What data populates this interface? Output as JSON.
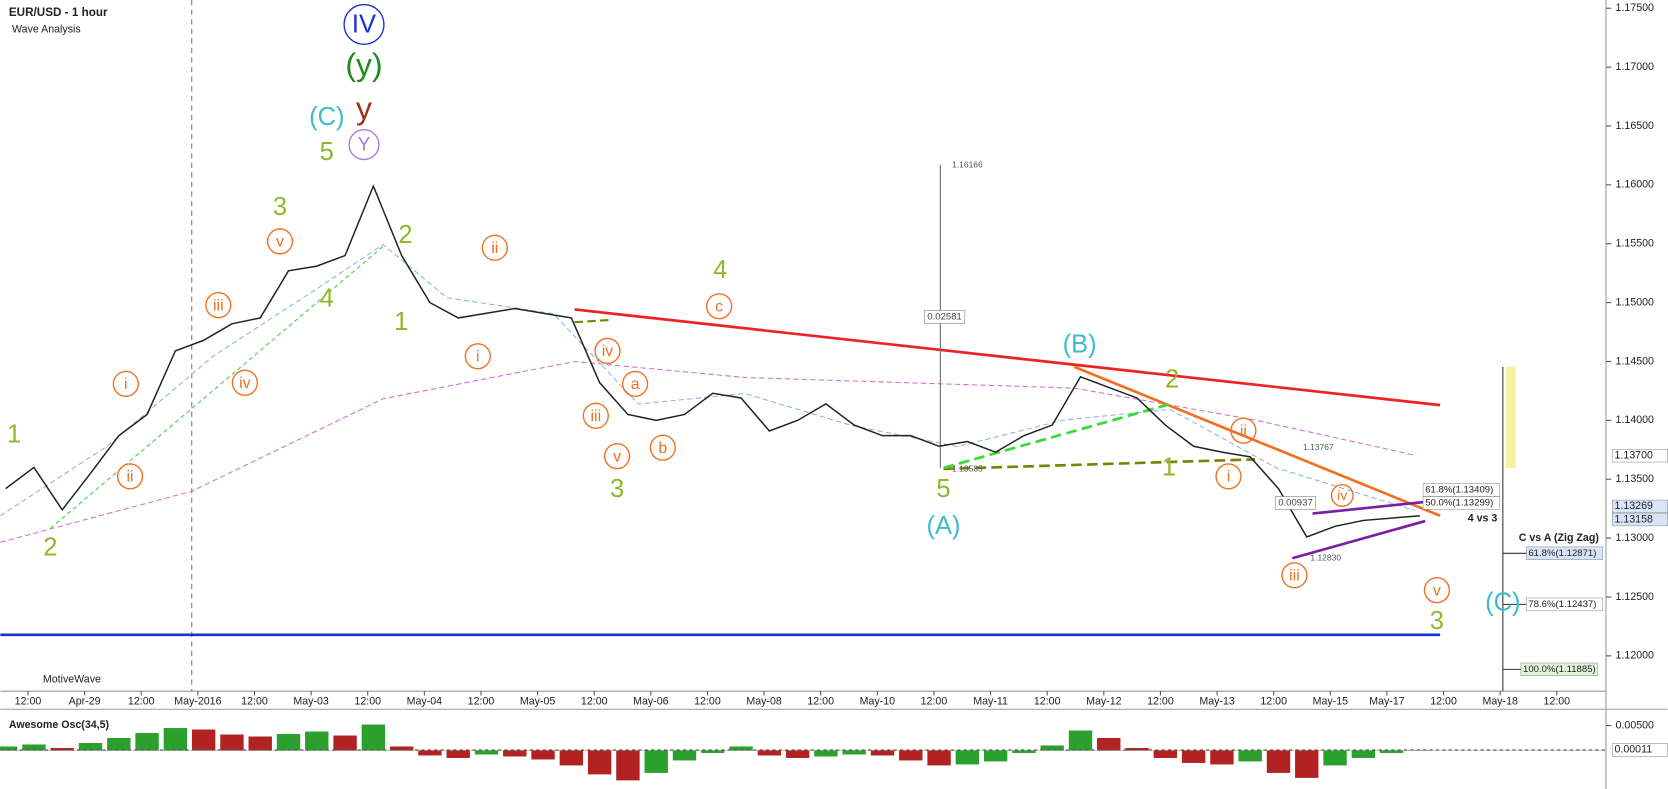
{
  "header": {
    "title": "EUR/USD - 1 hour",
    "subtitle": "Wave Analysis",
    "brand": "MotiveWave"
  },
  "chart_data": [
    {
      "type": "line",
      "name": "EUR/USD",
      "color": "#222222",
      "values": [
        1.1342,
        1.136,
        1.1324,
        1.1355,
        1.1387,
        1.1405,
        1.1459,
        1.1468,
        1.1482,
        1.1487,
        1.1527,
        1.1531,
        1.154,
        1.1599,
        1.154,
        1.15,
        1.1487,
        1.1491,
        1.1495,
        1.1491,
        1.1487,
        1.1432,
        1.1405,
        1.14,
        1.1405,
        1.1423,
        1.1419,
        1.1391,
        1.14,
        1.1414,
        1.1396,
        1.1387,
        1.1387,
        1.1378,
        1.1382,
        1.1373,
        1.1387,
        1.1396,
        1.1437,
        1.1428,
        1.1419,
        1.1396,
        1.1378,
        1.1373,
        1.1369,
        1.1342,
        1.1301,
        1.131,
        1.1315,
        1.1317,
        1.1319
      ],
      "ylim": [
        1.117,
        1.1757
      ],
      "yticks": [
        {
          "value": 1.12,
          "label": "1.12000"
        },
        {
          "value": 1.125,
          "label": "1.12500"
        },
        {
          "value": 1.13,
          "label": "1.13000"
        },
        {
          "value": 1.135,
          "label": "1.13500"
        },
        {
          "value": 1.14,
          "label": "1.14000"
        },
        {
          "value": 1.145,
          "label": "1.14500"
        },
        {
          "value": 1.15,
          "label": "1.15000"
        },
        {
          "value": 1.155,
          "label": "1.15500"
        },
        {
          "value": 1.16,
          "label": "1.16000"
        },
        {
          "value": 1.165,
          "label": "1.16500"
        },
        {
          "value": 1.17,
          "label": "1.17000"
        },
        {
          "value": 1.175,
          "label": "1.17500"
        }
      ],
      "x_tick_labels": [
        "12:00",
        "Apr-29",
        "12:00",
        "May-2016",
        "12:00",
        "May-03",
        "12:00",
        "May-04",
        "12:00",
        "May-05",
        "12:00",
        "May-06",
        "12:00",
        "May-08",
        "12:00",
        "May-10",
        "12:00",
        "May-11",
        "12:00",
        "May-12",
        "12:00",
        "May-13",
        "12:00",
        "May-15",
        "May-17",
        "12:00",
        "May-18",
        "12:00"
      ],
      "price_labels": [
        {
          "value": 1.137,
          "label": "1.13700"
        },
        {
          "value": 1.13269,
          "label": "1.13269"
        },
        {
          "value": 1.13158,
          "label": "1.13158"
        }
      ]
    },
    {
      "type": "bar",
      "title": "Awesome Osc(34,5)",
      "up_color": "#2ca02c",
      "down_color": "#b22222",
      "values": [
        0.0008,
        0.0012,
        0.0005,
        0.0015,
        0.0025,
        0.0035,
        0.0045,
        0.0042,
        0.0032,
        0.0028,
        0.0033,
        0.0038,
        0.003,
        0.0052,
        0.0008,
        -0.001,
        -0.0015,
        -0.0008,
        -0.0012,
        -0.0018,
        -0.003,
        -0.0048,
        -0.006,
        -0.0045,
        -0.002,
        -0.0005,
        0.0008,
        -0.001,
        -0.0015,
        -0.0012,
        -0.0008,
        -0.001,
        -0.002,
        -0.003,
        -0.0028,
        -0.0022,
        -0.0005,
        0.001,
        0.004,
        0.0025,
        0.0005,
        -0.0015,
        -0.0025,
        -0.0028,
        -0.0022,
        -0.0045,
        -0.0055,
        -0.003,
        -0.0015,
        -0.0005,
        0.0001
      ],
      "ylim": [
        -0.0073,
        0.0072
      ],
      "yticks": [
        {
          "value": 0.005,
          "label": "0.00500"
        }
      ],
      "price_labels": [
        {
          "value": 0.00011,
          "label": "0.00011"
        }
      ]
    }
  ],
  "annotations": [
    "IV",
    "(y)",
    "y",
    "(C)",
    "Y",
    "5",
    "3",
    "v",
    "2",
    "4",
    "1",
    "iii",
    "iv",
    "i",
    "ii",
    "1",
    "2",
    "ii",
    "i",
    "4",
    "c",
    "iv",
    "a",
    "iii",
    "v",
    "b",
    "3",
    "5",
    "(A)",
    "(B)",
    "2",
    "ii",
    "i",
    "1",
    "iii",
    "iv",
    "v",
    "3",
    "(C)"
  ],
  "fib_labels": [
    {
      "value": 1.13409,
      "label": "61.8%(1.13409)"
    },
    {
      "value": 1.13299,
      "label": "50.0%(1.13299)"
    },
    {
      "value": 1.12871,
      "label": "61.8%(1.12871)"
    },
    {
      "value": 1.12437,
      "label": "78.6%(1.12437)"
    },
    {
      "value": 1.11885,
      "label": "100.0%(1.11885)"
    }
  ],
  "measure_labels": [
    {
      "value": 1.16166,
      "label": "1.16166"
    },
    {
      "value": 1.13585,
      "label": "1.13585"
    },
    {
      "value": 1.13767,
      "label": "1.13767"
    },
    {
      "value": 1.1283,
      "label": "1.12830"
    }
  ],
  "measure_diffs": [
    "0.02581",
    "0.00937"
  ],
  "notes": [
    "C vs A (Zig Zag)",
    "4 vs 3"
  ]
}
